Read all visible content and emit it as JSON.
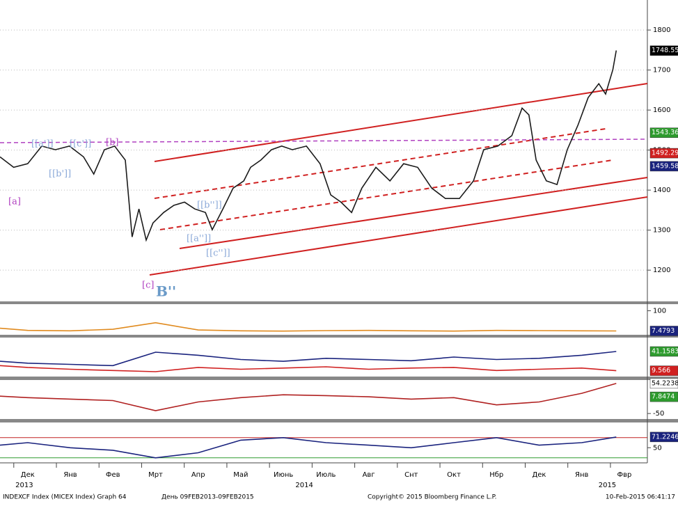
{
  "chart_data": [
    {
      "type": "line",
      "x": [
        0.35,
        0.67,
        1.0,
        1.33,
        1.65,
        1.98,
        2.31,
        2.55,
        2.8,
        3.04,
        3.29,
        3.45,
        3.61,
        3.78,
        3.94,
        4.19,
        4.43,
        4.68,
        4.92,
        5.17,
        5.33,
        5.58,
        5.82,
        6.07,
        6.23,
        6.47,
        6.72,
        6.96,
        7.21,
        7.54,
        7.86,
        8.11,
        8.35,
        8.6,
        8.84,
        9.17,
        9.5,
        9.82,
        10.15,
        10.48,
        10.8,
        11.13,
        11.46,
        11.7,
        12.03,
        12.36,
        12.6,
        12.76,
        12.93,
        13.17,
        13.42,
        13.66,
        13.91,
        14.15,
        14.4,
        14.56,
        14.73,
        14.81
      ],
      "series": [
        {
          "color": "#1a1a1a",
          "values": [
            1483,
            1457,
            1466,
            1510,
            1501,
            1510,
            1483,
            1440,
            1501,
            1510,
            1475,
            1283,
            1353,
            1275,
            1318,
            1344,
            1362,
            1370,
            1353,
            1344,
            1301,
            1353,
            1405,
            1423,
            1457,
            1475,
            1501,
            1510,
            1501,
            1510,
            1466,
            1388,
            1370,
            1344,
            1405,
            1457,
            1423,
            1466,
            1457,
            1405,
            1379,
            1379,
            1423,
            1501,
            1510,
            1536,
            1605,
            1588,
            1475,
            1423,
            1414,
            1501,
            1562,
            1631,
            1666,
            1640,
            1701,
            1749
          ]
        }
      ],
      "xlim": [
        0.35,
        15.54
      ],
      "ylim": [
        1122,
        1875
      ],
      "yticks": [
        1200,
        1300,
        1400,
        1500,
        1600,
        1700,
        1800
      ],
      "grid": true,
      "last_values": [
        {
          "value": 1748.55,
          "color": "#000000"
        },
        {
          "value": 1543.36,
          "color": "#2e9b2e"
        },
        {
          "value": 1492.29,
          "color": "#d02020"
        },
        {
          "value": 1459.58,
          "color": "#1a237e"
        }
      ],
      "annotations": [
        "[[a']]",
        "[[b']]",
        "[[c']]",
        "[b]",
        "[a]",
        "[c]",
        "B''",
        "[[a'']]",
        "[[b'']]",
        "[[c'']]"
      ]
    },
    {
      "type": "line",
      "x": [
        0.35,
        1,
        2,
        3,
        4,
        5,
        6,
        7,
        8,
        9,
        10,
        11,
        12,
        13,
        14,
        14.81
      ],
      "series": [
        {
          "color": "#e08a1e",
          "values": [
            20,
            10,
            8,
            15,
            45,
            12,
            8,
            7,
            9,
            10,
            8,
            7,
            10,
            9,
            8,
            7.4793
          ]
        }
      ],
      "xlim": [
        0.35,
        15.54
      ],
      "ylim": [
        -10,
        130
      ],
      "yticks": [
        100
      ],
      "grid": false,
      "last_values": [
        {
          "value": 7.4793,
          "color": "#1a237e"
        }
      ]
    },
    {
      "type": "line",
      "x": [
        0.35,
        1,
        2,
        3,
        4,
        5,
        6,
        7,
        8,
        9,
        10,
        11,
        12,
        13,
        14,
        14.81
      ],
      "series": [
        {
          "color": "#1a237e",
          "values": [
            25,
            22,
            20,
            18,
            40,
            35,
            28,
            25,
            30,
            28,
            26,
            32,
            28,
            30,
            35,
            41.1583
          ]
        },
        {
          "color": "#d02020",
          "values": [
            18,
            15,
            12,
            10,
            8,
            15,
            12,
            14,
            16,
            12,
            14,
            15,
            10,
            12,
            14,
            9.566
          ]
        }
      ],
      "xlim": [
        0.35,
        15.54
      ],
      "ylim": [
        0,
        64
      ],
      "yticks": [],
      "grid": false,
      "last_values": [
        {
          "value": 41.1583,
          "color": "#2e9b2e"
        },
        {
          "value": 9.566,
          "color": "#d02020"
        }
      ]
    },
    {
      "type": "line",
      "x": [
        0.35,
        1,
        2,
        3,
        4,
        5,
        6,
        7,
        8,
        9,
        10,
        11,
        12,
        13,
        14,
        14.81
      ],
      "series": [
        {
          "color": "#b02020",
          "values": [
            10,
            5,
            0,
            -5,
            -40,
            -10,
            5,
            15,
            12,
            8,
            0,
            5,
            -20,
            -10,
            20,
            54.2238
          ]
        }
      ],
      "xlim": [
        0.35,
        15.54
      ],
      "ylim": [
        -69,
        66
      ],
      "yticks": [
        -50
      ],
      "grid": false,
      "last_values": [
        {
          "value": 54.2238,
          "color": "#ffffff"
        },
        {
          "value": 7.8474,
          "color": "#2e9b2e"
        }
      ]
    },
    {
      "type": "line",
      "x": [
        0.35,
        1,
        2,
        3,
        4,
        5,
        6,
        7,
        8,
        9,
        10,
        11,
        12,
        13,
        14,
        14.81
      ],
      "series": [
        {
          "color": "#1a237e",
          "values": [
            55,
            60,
            50,
            45,
            30,
            40,
            65,
            70,
            60,
            55,
            50,
            60,
            70,
            55,
            60,
            71.2246
          ]
        }
      ],
      "xlim": [
        0.35,
        15.54
      ],
      "ylim": [
        20,
        100
      ],
      "yticks": [
        50
      ],
      "grid": false,
      "hlines": [
        {
          "value": 70,
          "color": "#c02020"
        },
        {
          "value": 30,
          "color": "#2e9b2e"
        }
      ],
      "last_values": [
        {
          "value": 71.2246,
          "color": "#1a237e"
        }
      ],
      "xticks": [
        {
          "value": 1,
          "label": "Дек"
        },
        {
          "value": 2,
          "label": "Янв"
        },
        {
          "value": 3,
          "label": "Фев"
        },
        {
          "value": 4,
          "label": "Мрт"
        },
        {
          "value": 5,
          "label": "Апр"
        },
        {
          "value": 6,
          "label": "Май"
        },
        {
          "value": 7,
          "label": "Июнь"
        },
        {
          "value": 8,
          "label": "Июль"
        },
        {
          "value": 9,
          "label": "Авг"
        },
        {
          "value": 10,
          "label": "Снт"
        },
        {
          "value": 11,
          "label": "Окт"
        },
        {
          "value": 12,
          "label": "Нбр"
        },
        {
          "value": 13,
          "label": "Дек"
        },
        {
          "value": 14,
          "label": "Янв"
        },
        {
          "value": 15,
          "label": "Фвр"
        }
      ],
      "year_labels": [
        {
          "value": 0.92,
          "label": "2013"
        },
        {
          "value": 7.49,
          "label": "2014"
        },
        {
          "value": 14.6,
          "label": "2015"
        }
      ]
    }
  ],
  "footer": {
    "left": "INDEXCF Index (MICEX Index) Graph 64",
    "range": "День 09FEB2013-09FEB2015",
    "copyright": "Copyright© 2015 Bloomberg Finance L.P.",
    "timestamp": "10-Feb-2015 06:41:17"
  }
}
